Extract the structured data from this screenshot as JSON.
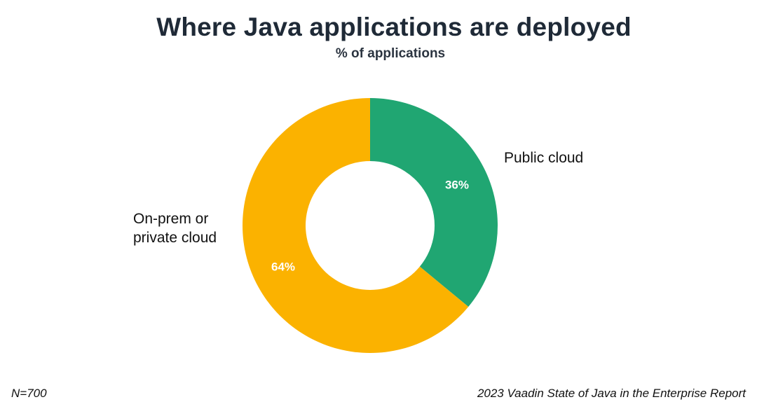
{
  "chart_data": {
    "type": "donut",
    "title": "Where Java applications are deployed",
    "subtitle": "% of applications",
    "unit": "%",
    "slices": [
      {
        "label": "Public cloud",
        "value": 36,
        "display": "36%",
        "color": "#20a672"
      },
      {
        "label": "On-prem or private cloud",
        "label_lines": [
          "On-prem or",
          "private cloud"
        ],
        "value": 64,
        "display": "64%",
        "color": "#fbb200"
      }
    ]
  },
  "footer": {
    "sample_size": "N=700",
    "source": "2023 Vaadin State of Java in the Enterprise Report"
  }
}
